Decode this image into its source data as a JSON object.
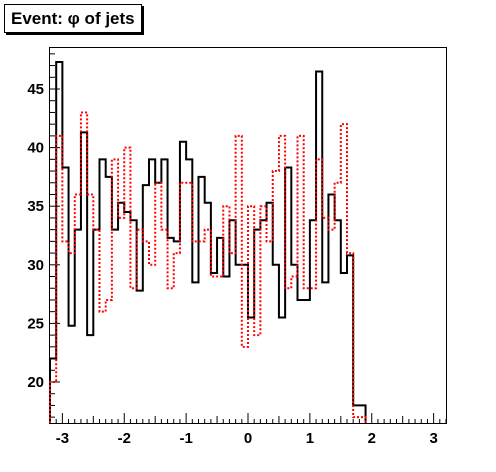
{
  "chart_data": {
    "type": "histogram",
    "title": "Event: φ of jets",
    "xlabel": "",
    "ylabel": "",
    "xlim": [
      -3.2,
      3.2
    ],
    "ylim": [
      16.5,
      48.5
    ],
    "x_ticks": [
      -3,
      -2,
      -1,
      0,
      1,
      2,
      3
    ],
    "y_ticks": [
      20,
      25,
      30,
      35,
      40,
      45
    ],
    "bin_width": 0.1,
    "x_start": -3.2,
    "series": [
      {
        "style": "solid",
        "color": "#000000",
        "values": [
          22.0,
          47.3,
          38.3,
          24.8,
          33.0,
          41.3,
          24.0,
          33.0,
          39.0,
          37.5,
          33.0,
          35.3,
          34.5,
          33.8,
          27.8,
          36.8,
          39.0,
          37.0,
          39.0,
          32.3,
          32.0,
          40.5,
          39.0,
          28.5,
          37.5,
          35.3,
          29.3,
          32.3,
          29.0,
          33.8,
          30.0,
          30.0,
          25.5,
          33.0,
          33.8,
          35.3,
          30.0,
          25.5,
          38.3,
          30.0,
          27.0,
          27.0,
          33.8,
          46.5,
          28.5,
          36.0,
          33.8,
          29.3,
          30.8,
          18.0,
          18.0
        ]
      },
      {
        "style": "dotted",
        "color": "#ff0000",
        "values": [
          20.0,
          41.0,
          32.0,
          31.0,
          36.0,
          43.0,
          36.0,
          33.0,
          26.0,
          27.0,
          39.0,
          34.0,
          40.0,
          28.0,
          33.0,
          32.0,
          30.0,
          37.0,
          33.0,
          28.0,
          31.0,
          37.0,
          37.0,
          32.0,
          32.0,
          33.0,
          29.0,
          29.0,
          35.0,
          31.0,
          41.0,
          23.0,
          35.0,
          24.0,
          35.0,
          32.0,
          38.0,
          41.0,
          28.0,
          29.0,
          41.0,
          28.0,
          28.0,
          39.0,
          34.0,
          33.0,
          37.0,
          42.0,
          31.0,
          17.0,
          17.0
        ]
      }
    ]
  }
}
